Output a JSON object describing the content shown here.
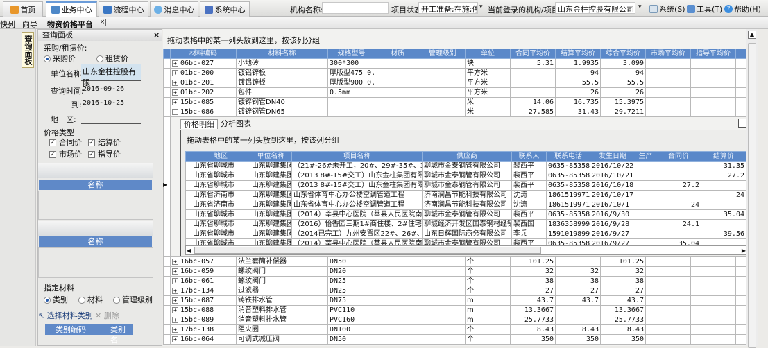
{
  "topbar": {
    "tabs": [
      {
        "label": "首页",
        "icon": "home-icon"
      },
      {
        "label": "业务中心",
        "icon": "business-icon"
      },
      {
        "label": "流程中心",
        "icon": "flow-icon"
      },
      {
        "label": "消息中心",
        "icon": "message-icon"
      },
      {
        "label": "系统中心",
        "icon": "system-icon"
      }
    ],
    "org_label": "机构名称:",
    "org_value": "",
    "status_label": "项目状态:",
    "status_value": "开工准备;在施;停工",
    "login_label": "当前登录的机构/项目:",
    "login_value": "山东金柱控股有限公司",
    "menu": [
      {
        "label": "系统(S)",
        "icon": "document-icon"
      },
      {
        "label": "工具(T)",
        "icon": "tool-icon"
      },
      {
        "label": "帮助(H)",
        "icon": "help-icon"
      }
    ]
  },
  "subbar": {
    "items": [
      "快列",
      "向导"
    ],
    "active_tab": "物资价格平台"
  },
  "left": {
    "vertical_tab": "查询面板",
    "panel_title": "查询面板",
    "price_group": "采购/租赁价:",
    "radio_purchase": "采购价",
    "radio_rent": "租赁价",
    "unit_label": "单位名称:",
    "unit_value": "山东金柱控股有限",
    "time_label": "查询时间:",
    "time_from": "2016-09-26",
    "to_label": "到:",
    "time_to": "2016-10-25",
    "region_label": "地　区:",
    "region_value": "",
    "price_type_label": "价格类型",
    "checks": [
      "合同价",
      "结算价",
      "市场价",
      "指导价"
    ],
    "list_header": "名称",
    "material_label": "指定材料",
    "mat_radios": [
      "类别",
      "材料",
      "管理级别"
    ],
    "select_btn": "选择材料类别",
    "delete_btn": "删除",
    "cat_cols": [
      "类别编码",
      "类别名"
    ]
  },
  "main": {
    "group_hint": "拖动表格中的某一列头放到这里，按该列分组",
    "columns": [
      "材料编码",
      "材料名称",
      "规格型号",
      "材质",
      "管理级别",
      "单位",
      "合同平均价",
      "结算平均价",
      "综合平均价",
      "市场平均价",
      "指导平均价"
    ],
    "rows_top": [
      [
        "06bc-027",
        "小地砖",
        "300*300",
        "",
        "",
        "块",
        "5.31",
        "1.9935",
        "3.099",
        "",
        ""
      ],
      [
        "01bc-200",
        "镀铝锌板",
        "厚版型475 0.6",
        "",
        "",
        "平方米",
        "",
        "94",
        "94",
        "",
        ""
      ],
      [
        "01bc-201",
        "镀铝锌板",
        "厚版型900 0.5",
        "",
        "",
        "平方米",
        "",
        "55.5",
        "55.5",
        "",
        ""
      ],
      [
        "01bc-202",
        "包件",
        "0.5mm",
        "",
        "",
        "平方米",
        "",
        "26",
        "26",
        "",
        ""
      ],
      [
        "15bc-085",
        "镀锌钢管DN40",
        "",
        "",
        "",
        "米",
        "14.06",
        "16.735",
        "15.3975",
        "",
        ""
      ],
      [
        "15bc-086",
        "镀锌钢管DN65",
        "",
        "",
        "",
        "米",
        "27.585",
        "31.43",
        "29.7211",
        "",
        ""
      ]
    ],
    "expanded_index": 5,
    "detail": {
      "tabs": [
        "价格明细",
        "分析图表"
      ],
      "group_hint": "拖动表格中的某一列头放到这里，按该列分组",
      "columns": [
        "地区",
        "单位名称",
        "项目名称",
        "供应商",
        "联系人",
        "联系电话",
        "发生日期",
        "生产",
        "合同价",
        "结算价"
      ],
      "rows": [
        [
          "山东省聊城市",
          "山东聊建集团",
          "（21#-26#未开工，20#、29#-35#、37#-40#",
          "聊城市金泰钢管有限公司",
          "裴西平",
          "0635-8535806",
          "2016/10/22",
          "",
          "",
          "31.35"
        ],
        [
          "山东省聊城市",
          "山东聊建集团",
          "（2013 8#-15#交工）山东金柱集团有限公司",
          "聊城市金泰钢管有限公司",
          "裴西平",
          "0635-8535806",
          "2016/10/21",
          "",
          "",
          "27.2"
        ],
        [
          "山东省聊城市",
          "山东聊建集团",
          "（2013 8#-15#交工）山东金柱集团有限公司",
          "聊城市金泰钢管有限公司",
          "裴西平",
          "0635-8535806",
          "2016/10/18",
          "",
          "27.2",
          ""
        ],
        [
          "山东省济南市",
          "山东聊建集团",
          "山东省体育中心办公楼空调管道工程",
          "济南润昌节能科技有限公司",
          "沈涛",
          "18615199716",
          "2016/10/17",
          "",
          "",
          "24"
        ],
        [
          "山东省济南市",
          "山东聊建集团",
          "山东省体育中心办公楼空调管道工程",
          "济南润昌节能科技有限公司",
          "沈涛",
          "18615199716",
          "2016/10/1",
          "",
          "24",
          ""
        ],
        [
          "山东省聊城市",
          "山东聊建集团",
          "（2014）莘县中心医院（莘县人民医院南区",
          "聊城市金泰钢管有限公司",
          "裴西平",
          "0635-8535806",
          "2016/9/30",
          "",
          "",
          "35.04"
        ],
        [
          "山东省聊城市",
          "山东聊建集团",
          "（2016）怡香园三期1#商住楼、2#住宅楼",
          "聊城经济开发区国泰钢材经销",
          "裴西国",
          "18363589999",
          "2016/9/28",
          "",
          "24.1",
          ""
        ],
        [
          "山东省聊城市",
          "山东聊建集团",
          "（2014已完工）九州安置区22#、26#、28#",
          "山东日辉国际商务有限公司",
          "李兵",
          "15910198999",
          "2016/9/27",
          "",
          "",
          "39.56"
        ],
        [
          "山东省聊城市",
          "山东聊建集团",
          "（2014）莘县中心医院（莘县人民医院南区",
          "聊城市金泰钢管有限公司",
          "裴西平",
          "0635-8535806",
          "2016/9/27",
          "",
          "35.04",
          ""
        ]
      ]
    },
    "rows_bottom": [
      [
        "16bc-057",
        "法兰套筒补偿器",
        "DN50",
        "",
        "",
        "个",
        "101.25",
        "",
        "101.25",
        "",
        ""
      ],
      [
        "16bc-059",
        "螺纹阀门",
        "DN20",
        "",
        "",
        "个",
        "32",
        "32",
        "32",
        "",
        ""
      ],
      [
        "16bc-061",
        "螺纹阀门",
        "DN25",
        "",
        "",
        "个",
        "38",
        "38",
        "38",
        "",
        ""
      ],
      [
        "17bc-134",
        "过滤器",
        "DN25",
        "",
        "",
        "个",
        "27",
        "27",
        "27",
        "",
        ""
      ],
      [
        "15bc-087",
        "铸铁排水管",
        "DN75",
        "",
        "",
        "m",
        "43.7",
        "43.7",
        "43.7",
        "",
        ""
      ],
      [
        "15bc-088",
        "消音塑料排水管",
        "PVC110",
        "",
        "",
        "m",
        "13.3667",
        "",
        "13.3667",
        "",
        ""
      ],
      [
        "15bc-089",
        "消音塑料排水管",
        "PVC160",
        "",
        "",
        "m",
        "25.7733",
        "",
        "25.7733",
        "",
        ""
      ],
      [
        "17bc-138",
        "阻火圈",
        "DN100",
        "",
        "",
        "个",
        "8.43",
        "8.43",
        "8.43",
        "",
        ""
      ],
      [
        "16bc-064",
        "可调式减压阀",
        "DN50",
        "",
        "",
        "个",
        "350",
        "350",
        "350",
        "",
        ""
      ]
    ]
  },
  "colors": {
    "header_blue": "#5a88c9",
    "accent": "#6a9bd8"
  }
}
